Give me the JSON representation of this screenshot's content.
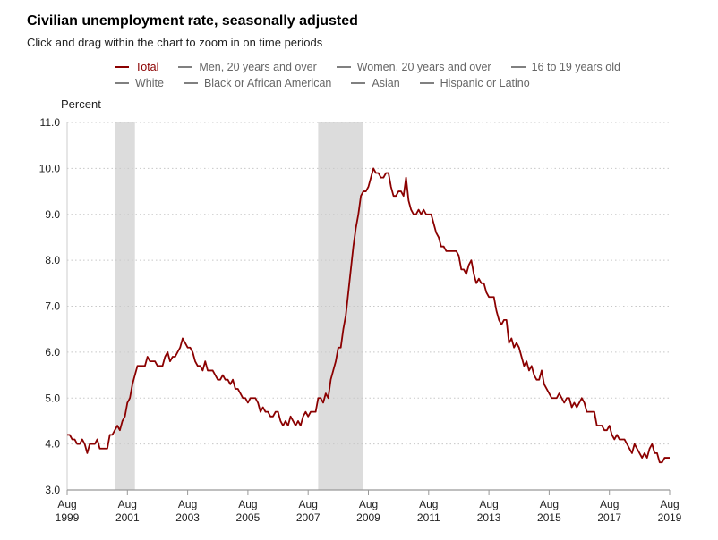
{
  "header": {
    "title": "Civilian unemployment rate, seasonally adjusted",
    "subtitle": "Click and drag within the chart to zoom in on time periods"
  },
  "legend": {
    "row1": [
      {
        "label": "Total",
        "active": true
      },
      {
        "label": "Men, 20 years and over",
        "active": false
      },
      {
        "label": "Women, 20 years and over",
        "active": false
      },
      {
        "label": "16 to 19 years old",
        "active": false
      }
    ],
    "row2": [
      {
        "label": "White",
        "active": false
      },
      {
        "label": "Black or African American",
        "active": false
      },
      {
        "label": "Asian",
        "active": false
      },
      {
        "label": "Hispanic or Latino",
        "active": false
      }
    ]
  },
  "colors": {
    "total_line": "#8b0000",
    "inactive_series": "#808080",
    "recession_band": "#dcdcdc",
    "grid": "#c8c8c8"
  },
  "chart_data": {
    "type": "line",
    "title": "Civilian unemployment rate, seasonally adjusted",
    "ylabel": "Percent",
    "ylim": [
      3.0,
      11.0
    ],
    "yticks": [
      "3.0",
      "4.0",
      "5.0",
      "6.0",
      "7.0",
      "8.0",
      "9.0",
      "10.0",
      "11.0"
    ],
    "xlim": [
      "1999-08",
      "2019-08"
    ],
    "xticks": [
      {
        "month": "Aug",
        "year": "1999"
      },
      {
        "month": "Aug",
        "year": "2001"
      },
      {
        "month": "Aug",
        "year": "2003"
      },
      {
        "month": "Aug",
        "year": "2005"
      },
      {
        "month": "Aug",
        "year": "2007"
      },
      {
        "month": "Aug",
        "year": "2009"
      },
      {
        "month": "Aug",
        "year": "2011"
      },
      {
        "month": "Aug",
        "year": "2013"
      },
      {
        "month": "Aug",
        "year": "2015"
      },
      {
        "month": "Aug",
        "year": "2017"
      },
      {
        "month": "Aug",
        "year": "2019"
      }
    ],
    "grid": "horizontal dotted",
    "legend_position": "top",
    "recessions": [
      {
        "start": "2001-03",
        "end": "2001-11"
      },
      {
        "start": "2007-12",
        "end": "2009-06"
      }
    ],
    "series": [
      {
        "name": "Total",
        "points": [
          [
            "1999-08",
            4.2
          ],
          [
            "1999-09",
            4.2
          ],
          [
            "1999-10",
            4.1
          ],
          [
            "1999-11",
            4.1
          ],
          [
            "1999-12",
            4.0
          ],
          [
            "2000-01",
            4.0
          ],
          [
            "2000-02",
            4.1
          ],
          [
            "2000-03",
            4.0
          ],
          [
            "2000-04",
            3.8
          ],
          [
            "2000-05",
            4.0
          ],
          [
            "2000-06",
            4.0
          ],
          [
            "2000-07",
            4.0
          ],
          [
            "2000-08",
            4.1
          ],
          [
            "2000-09",
            3.9
          ],
          [
            "2000-10",
            3.9
          ],
          [
            "2000-11",
            3.9
          ],
          [
            "2000-12",
            3.9
          ],
          [
            "2001-01",
            4.2
          ],
          [
            "2001-02",
            4.2
          ],
          [
            "2001-03",
            4.3
          ],
          [
            "2001-04",
            4.4
          ],
          [
            "2001-05",
            4.3
          ],
          [
            "2001-06",
            4.5
          ],
          [
            "2001-07",
            4.6
          ],
          [
            "2001-08",
            4.9
          ],
          [
            "2001-09",
            5.0
          ],
          [
            "2001-10",
            5.3
          ],
          [
            "2001-11",
            5.5
          ],
          [
            "2001-12",
            5.7
          ],
          [
            "2002-01",
            5.7
          ],
          [
            "2002-02",
            5.7
          ],
          [
            "2002-03",
            5.7
          ],
          [
            "2002-04",
            5.9
          ],
          [
            "2002-05",
            5.8
          ],
          [
            "2002-06",
            5.8
          ],
          [
            "2002-07",
            5.8
          ],
          [
            "2002-08",
            5.7
          ],
          [
            "2002-09",
            5.7
          ],
          [
            "2002-10",
            5.7
          ],
          [
            "2002-11",
            5.9
          ],
          [
            "2002-12",
            6.0
          ],
          [
            "2003-01",
            5.8
          ],
          [
            "2003-02",
            5.9
          ],
          [
            "2003-03",
            5.9
          ],
          [
            "2003-04",
            6.0
          ],
          [
            "2003-05",
            6.1
          ],
          [
            "2003-06",
            6.3
          ],
          [
            "2003-07",
            6.2
          ],
          [
            "2003-08",
            6.1
          ],
          [
            "2003-09",
            6.1
          ],
          [
            "2003-10",
            6.0
          ],
          [
            "2003-11",
            5.8
          ],
          [
            "2003-12",
            5.7
          ],
          [
            "2004-01",
            5.7
          ],
          [
            "2004-02",
            5.6
          ],
          [
            "2004-03",
            5.8
          ],
          [
            "2004-04",
            5.6
          ],
          [
            "2004-05",
            5.6
          ],
          [
            "2004-06",
            5.6
          ],
          [
            "2004-07",
            5.5
          ],
          [
            "2004-08",
            5.4
          ],
          [
            "2004-09",
            5.4
          ],
          [
            "2004-10",
            5.5
          ],
          [
            "2004-11",
            5.4
          ],
          [
            "2004-12",
            5.4
          ],
          [
            "2005-01",
            5.3
          ],
          [
            "2005-02",
            5.4
          ],
          [
            "2005-03",
            5.2
          ],
          [
            "2005-04",
            5.2
          ],
          [
            "2005-05",
            5.1
          ],
          [
            "2005-06",
            5.0
          ],
          [
            "2005-07",
            5.0
          ],
          [
            "2005-08",
            4.9
          ],
          [
            "2005-09",
            5.0
          ],
          [
            "2005-10",
            5.0
          ],
          [
            "2005-11",
            5.0
          ],
          [
            "2005-12",
            4.9
          ],
          [
            "2006-01",
            4.7
          ],
          [
            "2006-02",
            4.8
          ],
          [
            "2006-03",
            4.7
          ],
          [
            "2006-04",
            4.7
          ],
          [
            "2006-05",
            4.6
          ],
          [
            "2006-06",
            4.6
          ],
          [
            "2006-07",
            4.7
          ],
          [
            "2006-08",
            4.7
          ],
          [
            "2006-09",
            4.5
          ],
          [
            "2006-10",
            4.4
          ],
          [
            "2006-11",
            4.5
          ],
          [
            "2006-12",
            4.4
          ],
          [
            "2007-01",
            4.6
          ],
          [
            "2007-02",
            4.5
          ],
          [
            "2007-03",
            4.4
          ],
          [
            "2007-04",
            4.5
          ],
          [
            "2007-05",
            4.4
          ],
          [
            "2007-06",
            4.6
          ],
          [
            "2007-07",
            4.7
          ],
          [
            "2007-08",
            4.6
          ],
          [
            "2007-09",
            4.7
          ],
          [
            "2007-10",
            4.7
          ],
          [
            "2007-11",
            4.7
          ],
          [
            "2007-12",
            5.0
          ],
          [
            "2008-01",
            5.0
          ],
          [
            "2008-02",
            4.9
          ],
          [
            "2008-03",
            5.1
          ],
          [
            "2008-04",
            5.0
          ],
          [
            "2008-05",
            5.4
          ],
          [
            "2008-06",
            5.6
          ],
          [
            "2008-07",
            5.8
          ],
          [
            "2008-08",
            6.1
          ],
          [
            "2008-09",
            6.1
          ],
          [
            "2008-10",
            6.5
          ],
          [
            "2008-11",
            6.8
          ],
          [
            "2008-12",
            7.3
          ],
          [
            "2009-01",
            7.8
          ],
          [
            "2009-02",
            8.3
          ],
          [
            "2009-03",
            8.7
          ],
          [
            "2009-04",
            9.0
          ],
          [
            "2009-05",
            9.4
          ],
          [
            "2009-06",
            9.5
          ],
          [
            "2009-07",
            9.5
          ],
          [
            "2009-08",
            9.6
          ],
          [
            "2009-09",
            9.8
          ],
          [
            "2009-10",
            10.0
          ],
          [
            "2009-11",
            9.9
          ],
          [
            "2009-12",
            9.9
          ],
          [
            "2010-01",
            9.8
          ],
          [
            "2010-02",
            9.8
          ],
          [
            "2010-03",
            9.9
          ],
          [
            "2010-04",
            9.9
          ],
          [
            "2010-05",
            9.6
          ],
          [
            "2010-06",
            9.4
          ],
          [
            "2010-07",
            9.4
          ],
          [
            "2010-08",
            9.5
          ],
          [
            "2010-09",
            9.5
          ],
          [
            "2010-10",
            9.4
          ],
          [
            "2010-11",
            9.8
          ],
          [
            "2010-12",
            9.3
          ],
          [
            "2011-01",
            9.1
          ],
          [
            "2011-02",
            9.0
          ],
          [
            "2011-03",
            9.0
          ],
          [
            "2011-04",
            9.1
          ],
          [
            "2011-05",
            9.0
          ],
          [
            "2011-06",
            9.1
          ],
          [
            "2011-07",
            9.0
          ],
          [
            "2011-08",
            9.0
          ],
          [
            "2011-09",
            9.0
          ],
          [
            "2011-10",
            8.8
          ],
          [
            "2011-11",
            8.6
          ],
          [
            "2011-12",
            8.5
          ],
          [
            "2012-01",
            8.3
          ],
          [
            "2012-02",
            8.3
          ],
          [
            "2012-03",
            8.2
          ],
          [
            "2012-04",
            8.2
          ],
          [
            "2012-05",
            8.2
          ],
          [
            "2012-06",
            8.2
          ],
          [
            "2012-07",
            8.2
          ],
          [
            "2012-08",
            8.1
          ],
          [
            "2012-09",
            7.8
          ],
          [
            "2012-10",
            7.8
          ],
          [
            "2012-11",
            7.7
          ],
          [
            "2012-12",
            7.9
          ],
          [
            "2013-01",
            8.0
          ],
          [
            "2013-02",
            7.7
          ],
          [
            "2013-03",
            7.5
          ],
          [
            "2013-04",
            7.6
          ],
          [
            "2013-05",
            7.5
          ],
          [
            "2013-06",
            7.5
          ],
          [
            "2013-07",
            7.3
          ],
          [
            "2013-08",
            7.2
          ],
          [
            "2013-09",
            7.2
          ],
          [
            "2013-10",
            7.2
          ],
          [
            "2013-11",
            6.9
          ],
          [
            "2013-12",
            6.7
          ],
          [
            "2014-01",
            6.6
          ],
          [
            "2014-02",
            6.7
          ],
          [
            "2014-03",
            6.7
          ],
          [
            "2014-04",
            6.2
          ],
          [
            "2014-05",
            6.3
          ],
          [
            "2014-06",
            6.1
          ],
          [
            "2014-07",
            6.2
          ],
          [
            "2014-08",
            6.1
          ],
          [
            "2014-09",
            5.9
          ],
          [
            "2014-10",
            5.7
          ],
          [
            "2014-11",
            5.8
          ],
          [
            "2014-12",
            5.6
          ],
          [
            "2015-01",
            5.7
          ],
          [
            "2015-02",
            5.5
          ],
          [
            "2015-03",
            5.4
          ],
          [
            "2015-04",
            5.4
          ],
          [
            "2015-05",
            5.6
          ],
          [
            "2015-06",
            5.3
          ],
          [
            "2015-07",
            5.2
          ],
          [
            "2015-08",
            5.1
          ],
          [
            "2015-09",
            5.0
          ],
          [
            "2015-10",
            5.0
          ],
          [
            "2015-11",
            5.0
          ],
          [
            "2015-12",
            5.1
          ],
          [
            "2016-01",
            5.0
          ],
          [
            "2016-02",
            4.9
          ],
          [
            "2016-03",
            5.0
          ],
          [
            "2016-04",
            5.0
          ],
          [
            "2016-05",
            4.8
          ],
          [
            "2016-06",
            4.9
          ],
          [
            "2016-07",
            4.8
          ],
          [
            "2016-08",
            4.9
          ],
          [
            "2016-09",
            5.0
          ],
          [
            "2016-10",
            4.9
          ],
          [
            "2016-11",
            4.7
          ],
          [
            "2016-12",
            4.7
          ],
          [
            "2017-01",
            4.7
          ],
          [
            "2017-02",
            4.7
          ],
          [
            "2017-03",
            4.4
          ],
          [
            "2017-04",
            4.4
          ],
          [
            "2017-05",
            4.4
          ],
          [
            "2017-06",
            4.3
          ],
          [
            "2017-07",
            4.3
          ],
          [
            "2017-08",
            4.4
          ],
          [
            "2017-09",
            4.2
          ],
          [
            "2017-10",
            4.1
          ],
          [
            "2017-11",
            4.2
          ],
          [
            "2017-12",
            4.1
          ],
          [
            "2018-01",
            4.1
          ],
          [
            "2018-02",
            4.1
          ],
          [
            "2018-03",
            4.0
          ],
          [
            "2018-04",
            3.9
          ],
          [
            "2018-05",
            3.8
          ],
          [
            "2018-06",
            4.0
          ],
          [
            "2018-07",
            3.9
          ],
          [
            "2018-08",
            3.8
          ],
          [
            "2018-09",
            3.7
          ],
          [
            "2018-10",
            3.8
          ],
          [
            "2018-11",
            3.7
          ],
          [
            "2018-12",
            3.9
          ],
          [
            "2019-01",
            4.0
          ],
          [
            "2019-02",
            3.8
          ],
          [
            "2019-03",
            3.8
          ],
          [
            "2019-04",
            3.6
          ],
          [
            "2019-05",
            3.6
          ],
          [
            "2019-06",
            3.7
          ],
          [
            "2019-07",
            3.7
          ],
          [
            "2019-08",
            3.7
          ]
        ]
      }
    ]
  }
}
